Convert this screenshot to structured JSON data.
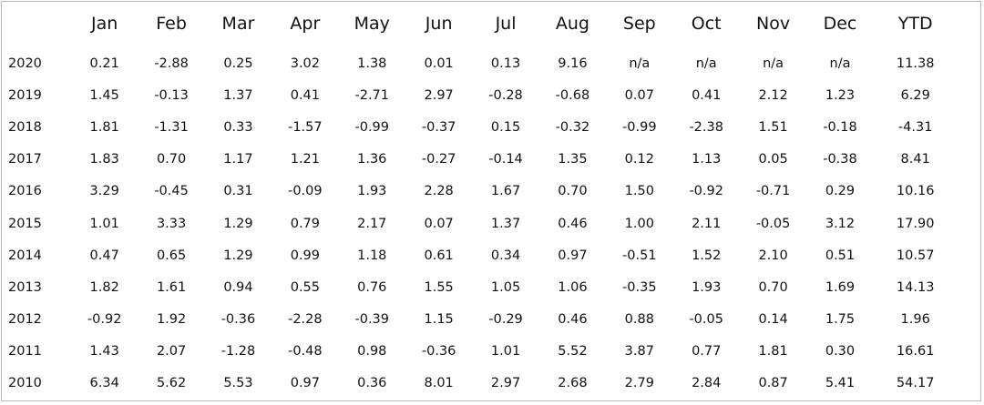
{
  "chart_data": {
    "type": "table",
    "columns": [
      "",
      "Jan",
      "Feb",
      "Mar",
      "Apr",
      "May",
      "Jun",
      "Jul",
      "Aug",
      "Sep",
      "Oct",
      "Nov",
      "Dec",
      "YTD"
    ],
    "rows": [
      [
        "2020",
        "0.21",
        "-2.88",
        "0.25",
        "3.02",
        "1.38",
        "0.01",
        "0.13",
        "9.16",
        "n/a",
        "n/a",
        "n/a",
        "n/a",
        "11.38"
      ],
      [
        "2019",
        "1.45",
        "-0.13",
        "1.37",
        "0.41",
        "-2.71",
        "2.97",
        "-0.28",
        "-0.68",
        "0.07",
        "0.41",
        "2.12",
        "1.23",
        "6.29"
      ],
      [
        "2018",
        "1.81",
        "-1.31",
        "0.33",
        "-1.57",
        "-0.99",
        "-0.37",
        "0.15",
        "-0.32",
        "-0.99",
        "-2.38",
        "1.51",
        "-0.18",
        "-4.31"
      ],
      [
        "2017",
        "1.83",
        "0.70",
        "1.17",
        "1.21",
        "1.36",
        "-0.27",
        "-0.14",
        "1.35",
        "0.12",
        "1.13",
        "0.05",
        "-0.38",
        "8.41"
      ],
      [
        "2016",
        "3.29",
        "-0.45",
        "0.31",
        "-0.09",
        "1.93",
        "2.28",
        "1.67",
        "0.70",
        "1.50",
        "-0.92",
        "-0.71",
        "0.29",
        "10.16"
      ],
      [
        "2015",
        "1.01",
        "3.33",
        "1.29",
        "0.79",
        "2.17",
        "0.07",
        "1.37",
        "0.46",
        "1.00",
        "2.11",
        "-0.05",
        "3.12",
        "17.90"
      ],
      [
        "2014",
        "0.47",
        "0.65",
        "1.29",
        "0.99",
        "1.18",
        "0.61",
        "0.34",
        "0.97",
        "-0.51",
        "1.52",
        "2.10",
        "0.51",
        "10.57"
      ],
      [
        "2013",
        "1.82",
        "1.61",
        "0.94",
        "0.55",
        "0.76",
        "1.55",
        "1.05",
        "1.06",
        "-0.35",
        "1.93",
        "0.70",
        "1.69",
        "14.13"
      ],
      [
        "2012",
        "-0.92",
        "1.92",
        "-0.36",
        "-2.28",
        "-0.39",
        "1.15",
        "-0.29",
        "0.46",
        "0.88",
        "-0.05",
        "0.14",
        "1.75",
        "1.96"
      ],
      [
        "2011",
        "1.43",
        "2.07",
        "-1.28",
        "-0.48",
        "0.98",
        "-0.36",
        "1.01",
        "5.52",
        "3.87",
        "0.77",
        "1.81",
        "0.30",
        "16.61"
      ],
      [
        "2010",
        "6.34",
        "5.62",
        "5.53",
        "0.97",
        "0.36",
        "8.01",
        "2.97",
        "2.68",
        "2.79",
        "2.84",
        "0.87",
        "5.41",
        "54.17"
      ]
    ]
  }
}
